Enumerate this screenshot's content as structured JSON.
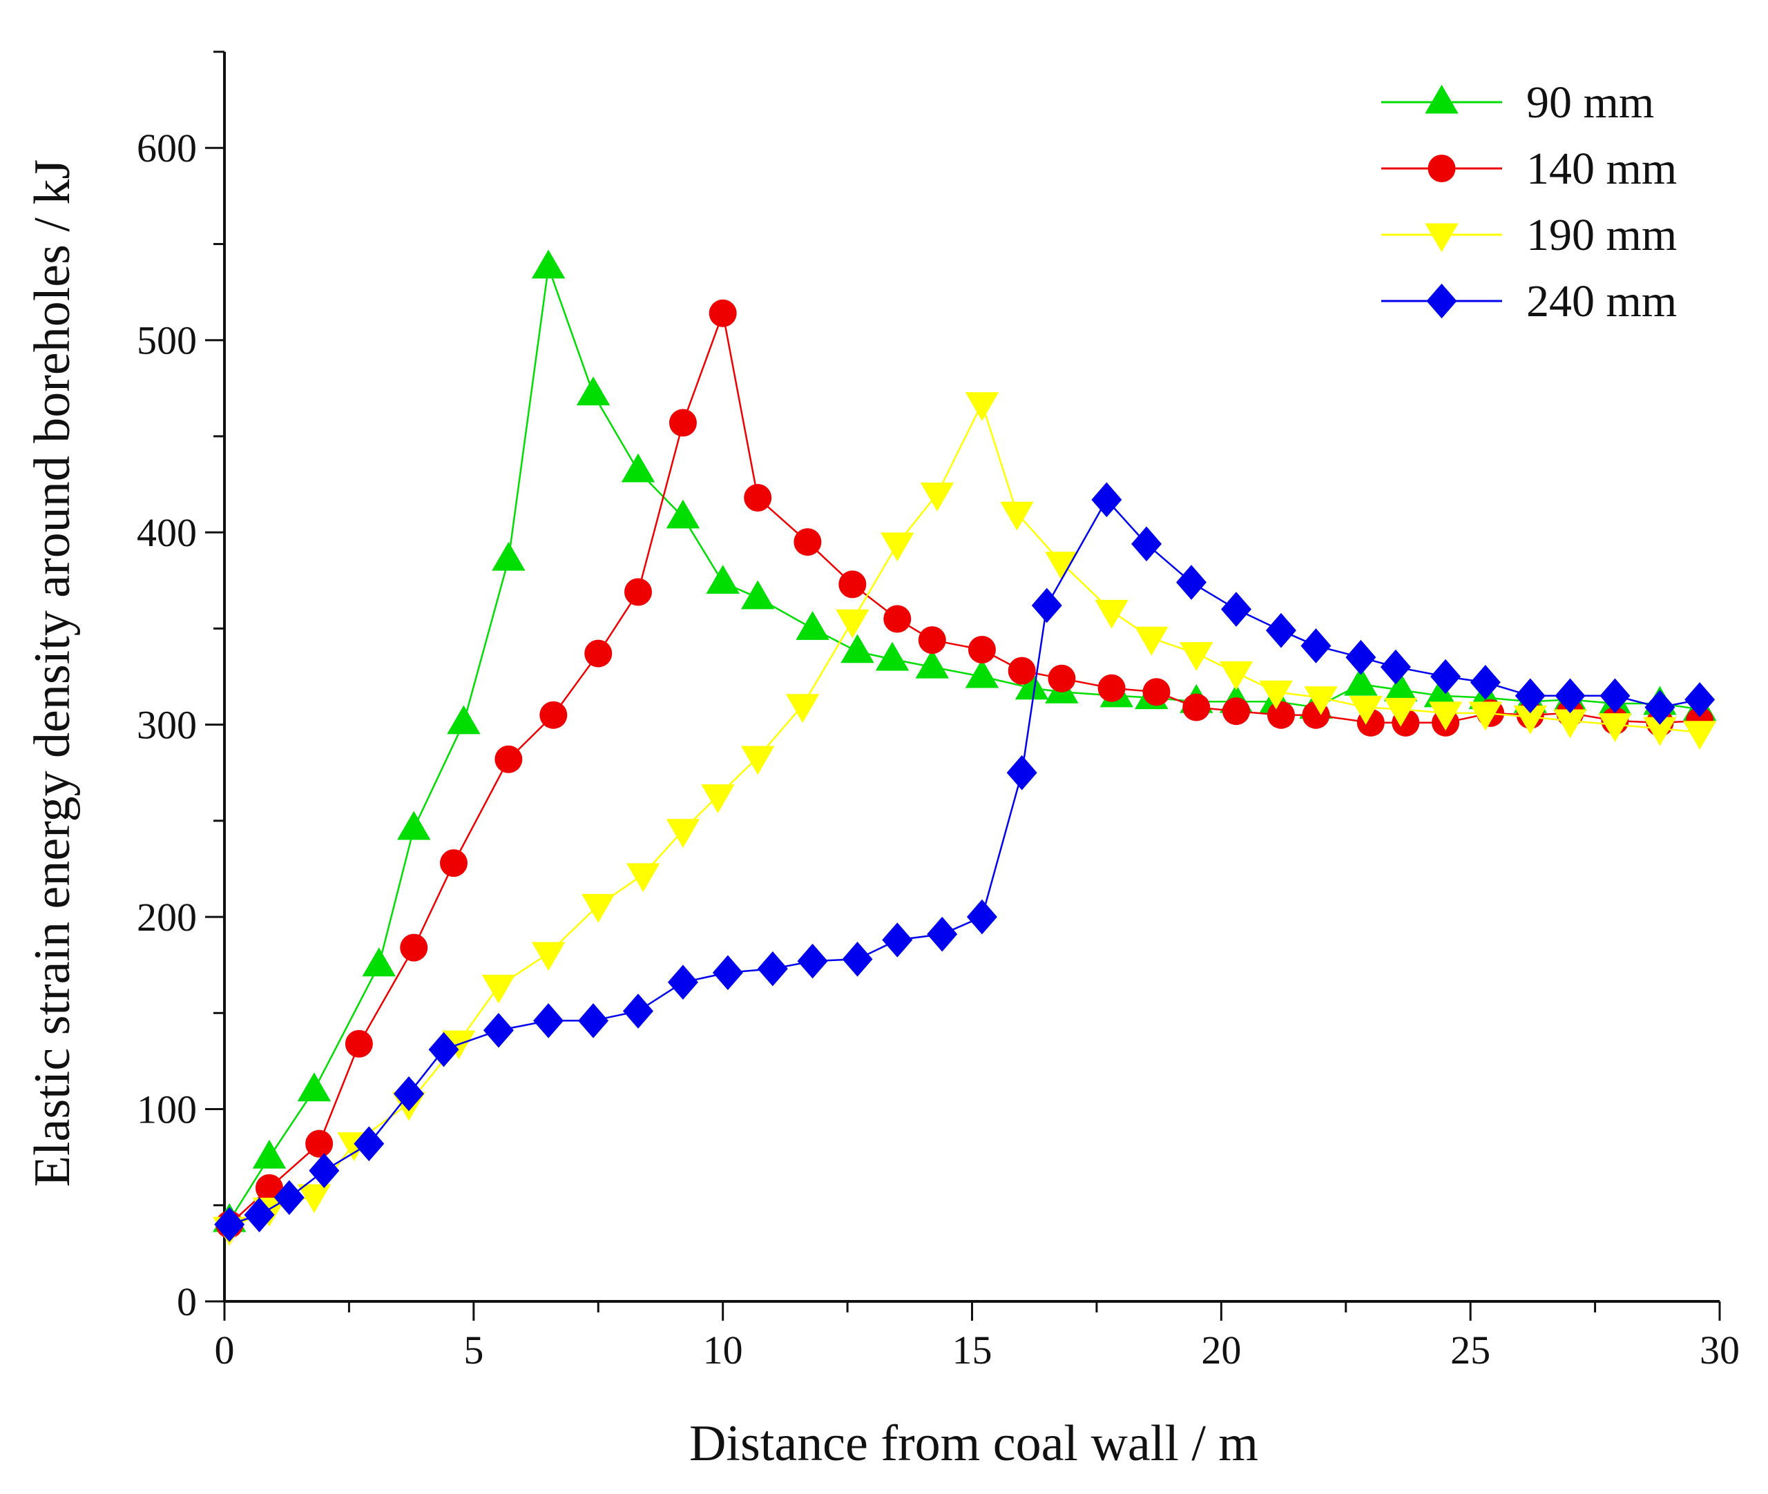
{
  "chart_data": {
    "type": "line",
    "title": "",
    "xlabel": "Distance from coal wall / m",
    "ylabel": "Elastic strain energy density around boreholes / kJ",
    "xlim": [
      0,
      30
    ],
    "ylim": [
      0,
      650
    ],
    "xticks": [
      0,
      5,
      10,
      15,
      20,
      25,
      30
    ],
    "yticks": [
      0,
      100,
      200,
      300,
      400,
      500,
      600
    ],
    "legend_position": "top-right",
    "grid": false,
    "series": [
      {
        "name": "90 mm",
        "color": "#00dd00",
        "marker": "triangle-up",
        "x": [
          0.1,
          0.9,
          1.8,
          3.1,
          3.8,
          4.8,
          5.7,
          6.5,
          7.4,
          8.3,
          9.2,
          10.0,
          10.7,
          11.8,
          12.7,
          13.4,
          14.2,
          15.2,
          16.2,
          16.8,
          17.9,
          18.6,
          19.5,
          20.3,
          21.1,
          21.9,
          22.8,
          23.6,
          24.4,
          25.3,
          26.2,
          27.0,
          27.9,
          28.8,
          29.6
        ],
        "y": [
          42,
          75,
          110,
          175,
          246,
          301,
          386,
          538,
          472,
          432,
          408,
          374,
          366,
          350,
          338,
          334,
          330,
          325,
          319,
          317,
          315,
          314,
          312,
          312,
          312,
          309,
          321,
          318,
          315,
          314,
          312,
          313,
          311,
          311,
          308
        ]
      },
      {
        "name": "140 mm",
        "color": "#ee0000",
        "marker": "circle",
        "x": [
          0.1,
          0.9,
          1.9,
          2.7,
          3.8,
          4.6,
          5.7,
          6.6,
          7.5,
          8.3,
          9.2,
          10.0,
          10.7,
          11.7,
          12.6,
          13.5,
          14.2,
          15.2,
          16.0,
          16.8,
          17.8,
          18.7,
          19.5,
          20.3,
          21.2,
          21.9,
          23.0,
          23.7,
          24.5,
          25.4,
          26.2,
          27.0,
          27.9,
          28.8,
          29.6
        ],
        "y": [
          40,
          59,
          82,
          134,
          184,
          228,
          282,
          305,
          337,
          369,
          457,
          514,
          418,
          395,
          373,
          355,
          344,
          339,
          328,
          324,
          319,
          317,
          309,
          307,
          305,
          305,
          301,
          301,
          301,
          306,
          305,
          306,
          302,
          301,
          302
        ]
      },
      {
        "name": "190 mm",
        "color": "#ffff00",
        "marker": "triangle-down",
        "x": [
          0.1,
          0.9,
          1.8,
          2.6,
          3.7,
          4.7,
          5.5,
          6.5,
          7.5,
          8.4,
          9.2,
          9.9,
          10.7,
          11.6,
          12.6,
          13.5,
          14.3,
          15.2,
          15.9,
          16.8,
          17.8,
          18.6,
          19.5,
          20.3,
          21.1,
          22.0,
          22.9,
          23.6,
          24.5,
          25.3,
          26.2,
          27.0,
          27.9,
          28.8,
          29.6
        ],
        "y": [
          38,
          48,
          55,
          82,
          103,
          135,
          164,
          181,
          206,
          222,
          245,
          263,
          283,
          310,
          354,
          394,
          420,
          467,
          410,
          384,
          359,
          345,
          337,
          327,
          317,
          314,
          309,
          308,
          306,
          306,
          304,
          302,
          300,
          298,
          296
        ]
      },
      {
        "name": "240 mm",
        "color": "#0000ee",
        "marker": "diamond",
        "x": [
          0.1,
          0.7,
          1.3,
          2.0,
          2.9,
          3.7,
          4.4,
          5.5,
          6.5,
          7.4,
          8.3,
          9.2,
          10.1,
          11.0,
          11.8,
          12.7,
          13.5,
          14.4,
          15.2,
          16.0,
          16.5,
          17.7,
          18.5,
          19.4,
          20.3,
          21.2,
          21.9,
          22.8,
          23.5,
          24.5,
          25.3,
          26.2,
          27.0,
          27.9,
          28.8,
          29.6
        ],
        "y": [
          40,
          45,
          54,
          68,
          82,
          108,
          131,
          141,
          146,
          146,
          151,
          166,
          171,
          173,
          177,
          178,
          188,
          191,
          200,
          275,
          362,
          417,
          394,
          374,
          360,
          349,
          341,
          335,
          330,
          325,
          322,
          315,
          315,
          315,
          309,
          313
        ]
      }
    ]
  }
}
